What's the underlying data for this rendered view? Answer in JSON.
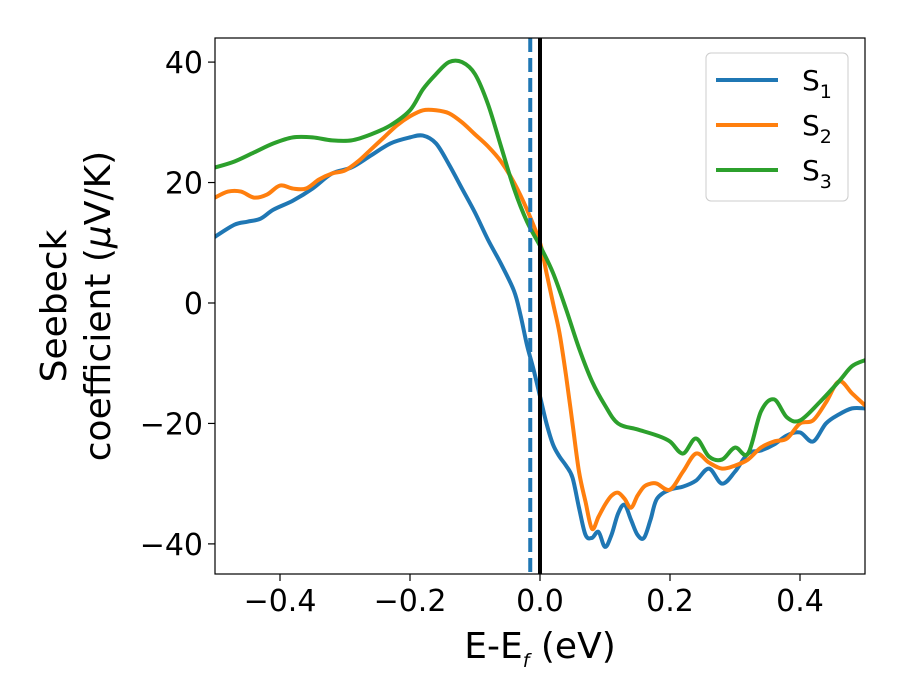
{
  "chart_data": {
    "type": "line",
    "xlabel": {
      "base": "E-E",
      "sub": "f",
      "suffix": " (eV)"
    },
    "ylabel": {
      "line1": "Seebeck",
      "line2_prefix": "coefficient  (",
      "mu": "μ",
      "line2_suffix": "V/K)"
    },
    "xlim": [
      -0.5,
      0.5
    ],
    "ylim": [
      -45,
      44
    ],
    "xticks": [
      -0.4,
      -0.2,
      0.0,
      0.2,
      0.4
    ],
    "xtick_labels": [
      "−0.4",
      "−0.2",
      "0.0",
      "0.2",
      "0.4"
    ],
    "yticks": [
      -40,
      -20,
      0,
      20,
      40
    ],
    "ytick_labels": [
      "−40",
      "−20",
      "0",
      "20",
      "40"
    ],
    "grid": false,
    "legend_position": "top-right",
    "vlines": [
      {
        "x": 0.0,
        "style": "solid",
        "color": "#000000"
      },
      {
        "x": -0.015,
        "style": "dashed",
        "color": "#1f77b4"
      }
    ],
    "series": [
      {
        "name": "S",
        "sub": "1",
        "color": "#1f77b4",
        "x": [
          -0.5,
          -0.47,
          -0.45,
          -0.43,
          -0.41,
          -0.38,
          -0.35,
          -0.32,
          -0.29,
          -0.26,
          -0.23,
          -0.2,
          -0.18,
          -0.16,
          -0.14,
          -0.12,
          -0.1,
          -0.08,
          -0.06,
          -0.04,
          -0.03,
          -0.02,
          -0.01,
          0.0,
          0.01,
          0.02,
          0.03,
          0.04,
          0.05,
          0.06,
          0.07,
          0.08,
          0.09,
          0.1,
          0.11,
          0.12,
          0.13,
          0.14,
          0.15,
          0.16,
          0.17,
          0.18,
          0.2,
          0.22,
          0.24,
          0.26,
          0.28,
          0.3,
          0.32,
          0.34,
          0.36,
          0.38,
          0.4,
          0.42,
          0.44,
          0.46,
          0.48,
          0.5
        ],
        "y": [
          11,
          13,
          13.5,
          14,
          15.5,
          17,
          19,
          21.5,
          22.5,
          24.5,
          26.5,
          27.5,
          27.8,
          26.5,
          23,
          19,
          15,
          10.5,
          6.5,
          2,
          -2,
          -7,
          -11,
          -15.5,
          -20,
          -23.5,
          -25.5,
          -27,
          -29,
          -34,
          -38.5,
          -39,
          -38,
          -40.5,
          -38.5,
          -35,
          -33.5,
          -36,
          -38.5,
          -39,
          -36,
          -32.5,
          -31,
          -30.5,
          -29.5,
          -27.5,
          -30,
          -28,
          -25,
          -24.5,
          -23.5,
          -22,
          -21.5,
          -23,
          -20,
          -18.5,
          -17.5,
          -17.5
        ]
      },
      {
        "name": "S",
        "sub": "2",
        "color": "#ff7f0e",
        "x": [
          -0.5,
          -0.48,
          -0.46,
          -0.44,
          -0.42,
          -0.4,
          -0.38,
          -0.36,
          -0.34,
          -0.32,
          -0.3,
          -0.28,
          -0.26,
          -0.24,
          -0.22,
          -0.2,
          -0.18,
          -0.16,
          -0.14,
          -0.12,
          -0.1,
          -0.08,
          -0.06,
          -0.04,
          -0.02,
          0.0,
          0.01,
          0.02,
          0.03,
          0.04,
          0.05,
          0.06,
          0.07,
          0.08,
          0.09,
          0.1,
          0.11,
          0.12,
          0.13,
          0.14,
          0.15,
          0.16,
          0.17,
          0.18,
          0.2,
          0.22,
          0.24,
          0.26,
          0.28,
          0.3,
          0.32,
          0.34,
          0.36,
          0.38,
          0.4,
          0.42,
          0.44,
          0.46,
          0.48,
          0.5
        ],
        "y": [
          17.5,
          18.5,
          18.5,
          17.5,
          18,
          19.5,
          19,
          19,
          20.5,
          21.5,
          22,
          23.5,
          25.5,
          27.5,
          29.5,
          31,
          32,
          32,
          31.5,
          30,
          28,
          26,
          23.5,
          20,
          15.5,
          10,
          5,
          0,
          -5,
          -12,
          -20,
          -28,
          -33,
          -37.5,
          -35.5,
          -33.5,
          -32,
          -31.5,
          -32.5,
          -34,
          -32,
          -30.5,
          -30,
          -30,
          -31,
          -28,
          -25,
          -26.5,
          -27.5,
          -27,
          -26,
          -24,
          -23,
          -22.5,
          -20,
          -19.5,
          -16.5,
          -13,
          -15,
          -17
        ]
      },
      {
        "name": "S",
        "sub": "3",
        "color": "#2ca02c",
        "x": [
          -0.5,
          -0.47,
          -0.44,
          -0.41,
          -0.38,
          -0.35,
          -0.32,
          -0.29,
          -0.26,
          -0.23,
          -0.2,
          -0.18,
          -0.16,
          -0.14,
          -0.12,
          -0.1,
          -0.08,
          -0.06,
          -0.04,
          -0.02,
          0.0,
          0.02,
          0.04,
          0.06,
          0.08,
          0.1,
          0.12,
          0.15,
          0.18,
          0.2,
          0.22,
          0.24,
          0.26,
          0.28,
          0.3,
          0.32,
          0.34,
          0.36,
          0.38,
          0.4,
          0.43,
          0.46,
          0.48,
          0.5
        ],
        "y": [
          22.5,
          23.5,
          25,
          26.5,
          27.5,
          27.5,
          27,
          27,
          28,
          29.5,
          32,
          35.5,
          38,
          40,
          40,
          38,
          33,
          26,
          19,
          13.5,
          9.5,
          5,
          -1,
          -7.5,
          -13,
          -17,
          -20,
          -21,
          -22,
          -23,
          -25,
          -22.5,
          -25.5,
          -26,
          -24,
          -25,
          -18,
          -16,
          -19,
          -19.5,
          -16.5,
          -13,
          -10.5,
          -9.5
        ]
      }
    ]
  }
}
